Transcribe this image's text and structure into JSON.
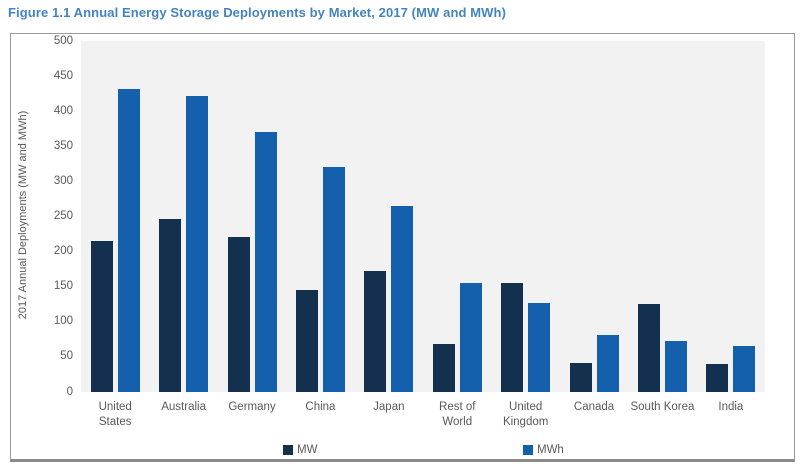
{
  "figure_title": "Figure 1.1 Annual Energy Storage Deployments by Market, 2017  (MW and MWh)",
  "colors": {
    "mw_bar": "#14304F",
    "mwh_bar": "#1460AC",
    "title_blue": "#4384C0",
    "plot_background": "#F2F2F2",
    "frame_border": "#8A8A8A",
    "axis_text": "#595959"
  },
  "chart_data": {
    "type": "bar",
    "title": "Figure 1.1 Annual Energy Storage Deployments by Market, 2017  (MW and MWh)",
    "categories": [
      "United States",
      "Australia",
      "Germany",
      "China",
      "Japan",
      "Rest of World",
      "United Kingdom",
      "Canada",
      "South Korea",
      "India"
    ],
    "series": [
      {
        "name": "MW",
        "color": "#14304F",
        "values": [
          215,
          246,
          221,
          145,
          173,
          68,
          155,
          42,
          125,
          40
        ]
      },
      {
        "name": "MWh",
        "color": "#1460AC",
        "values": [
          431,
          422,
          370,
          320,
          265,
          156,
          127,
          81,
          73,
          66
        ]
      }
    ],
    "xlabel": "",
    "ylabel": "2017 Annual Deployments (MW and MWh)",
    "ylim": [
      0,
      500
    ],
    "ytick_step": 50,
    "yticks": [
      0,
      50,
      100,
      150,
      200,
      250,
      300,
      350,
      400,
      450,
      500
    ],
    "grid": false,
    "legend_position": "bottom"
  },
  "legend": {
    "items": [
      {
        "label": "MW",
        "color": "#14304F"
      },
      {
        "label": "MWh",
        "color": "#1460AC"
      }
    ]
  }
}
